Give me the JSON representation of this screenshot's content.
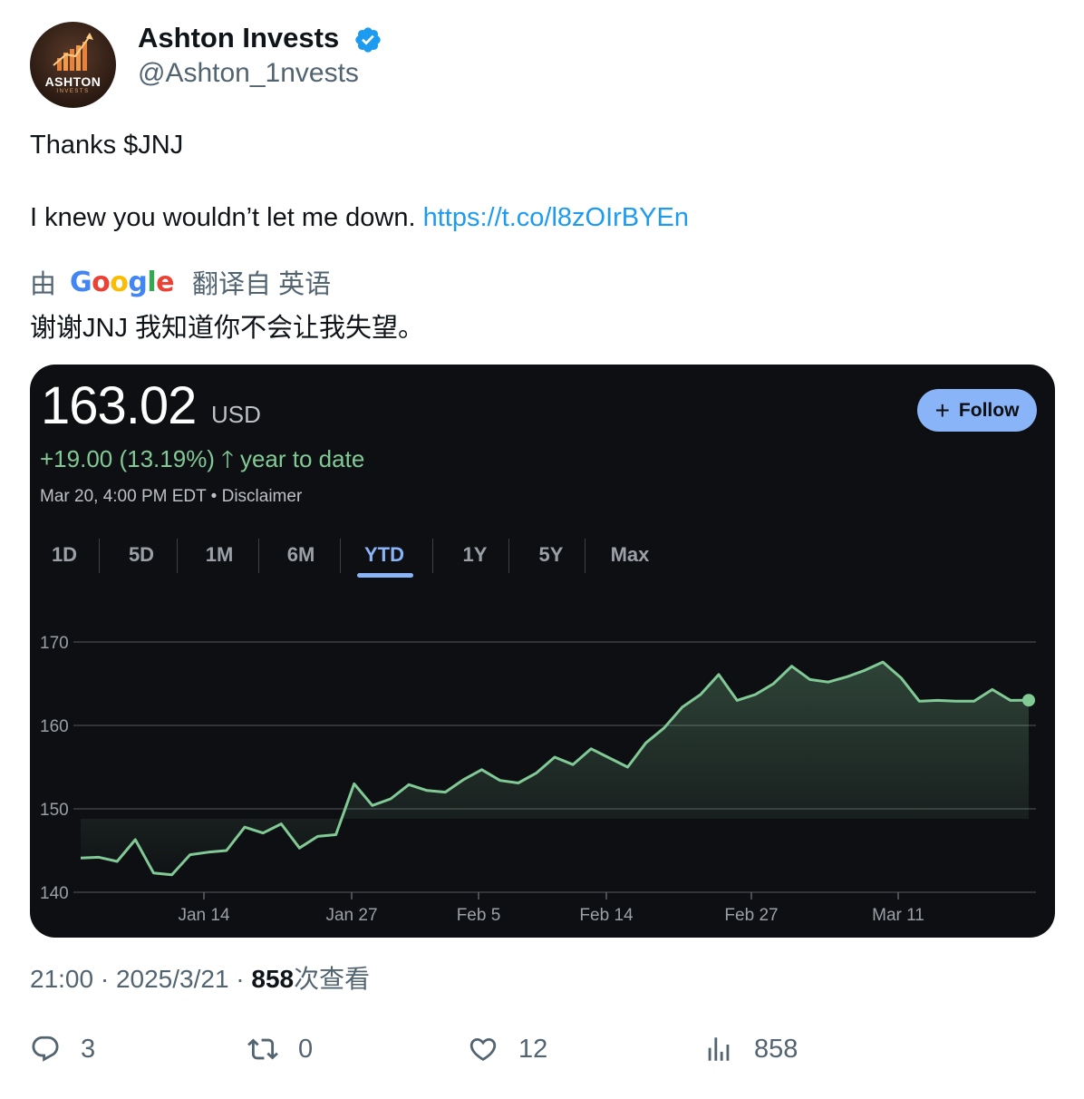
{
  "tweet": {
    "author_name": "Ashton Invests",
    "author_handle": "@Ashton_1nvests",
    "avatar_text": "ASHTON",
    "avatar_subtext": "INVESTS",
    "text_line1": "Thanks $JNJ",
    "text_line2": "I knew you wouldn’t let me down.",
    "link": "https://t.co/l8zOIrBYEn",
    "translate_prefix": "由",
    "translate_brand": "Google",
    "translate_suffix": "翻译自 英语",
    "translated_text": "谢谢JNJ 我知道你不会让我失望。",
    "timestamp": "21:00 · 2025/3/21 · ",
    "views_count": "858",
    "views_label": "次查看"
  },
  "finance_card": {
    "price": "163.02",
    "currency": "USD",
    "change": "+19.00 (13.19%)",
    "change_period": "year to date",
    "as_of": "Mar 20, 4:00 PM EDT • Disclaimer",
    "follow_label": "Follow",
    "tabs": [
      "1D",
      "5D",
      "1M",
      "6M",
      "YTD",
      "1Y",
      "5Y",
      "Max"
    ],
    "active_tab": "YTD",
    "colors": {
      "line": "#81c995",
      "accent": "#8ab4f8",
      "background": "#0e0f13"
    }
  },
  "chart_data": {
    "type": "line",
    "ylim": [
      140,
      172
    ],
    "y_ticks": [
      140,
      150,
      160,
      170
    ],
    "x_tick_labels": [
      "Jan 14",
      "Jan 27",
      "Feb 5",
      "Feb 14",
      "Feb 27",
      "Mar 11"
    ],
    "grid": true,
    "series": [
      {
        "values": [
          144.1,
          144.2,
          143.7,
          146.3,
          142.3,
          142.1,
          144.5,
          144.8,
          145.0,
          147.8,
          147.1,
          148.2,
          145.3,
          146.7,
          146.9,
          153.0,
          150.4,
          151.2,
          152.9,
          152.2,
          152.0,
          153.5,
          154.7,
          153.4,
          153.1,
          154.3,
          156.2,
          155.3,
          157.2,
          156.1,
          155.0,
          157.9,
          159.7,
          162.2,
          163.7,
          166.1,
          163.0,
          163.7,
          165.0,
          167.1,
          165.5,
          165.2,
          165.8,
          166.6,
          167.6,
          165.7,
          162.9,
          163.0,
          162.9,
          162.9,
          164.3,
          163.0,
          163.02
        ]
      }
    ]
  },
  "actions": {
    "replies": "3",
    "retweets": "0",
    "likes": "12",
    "views": "858"
  }
}
